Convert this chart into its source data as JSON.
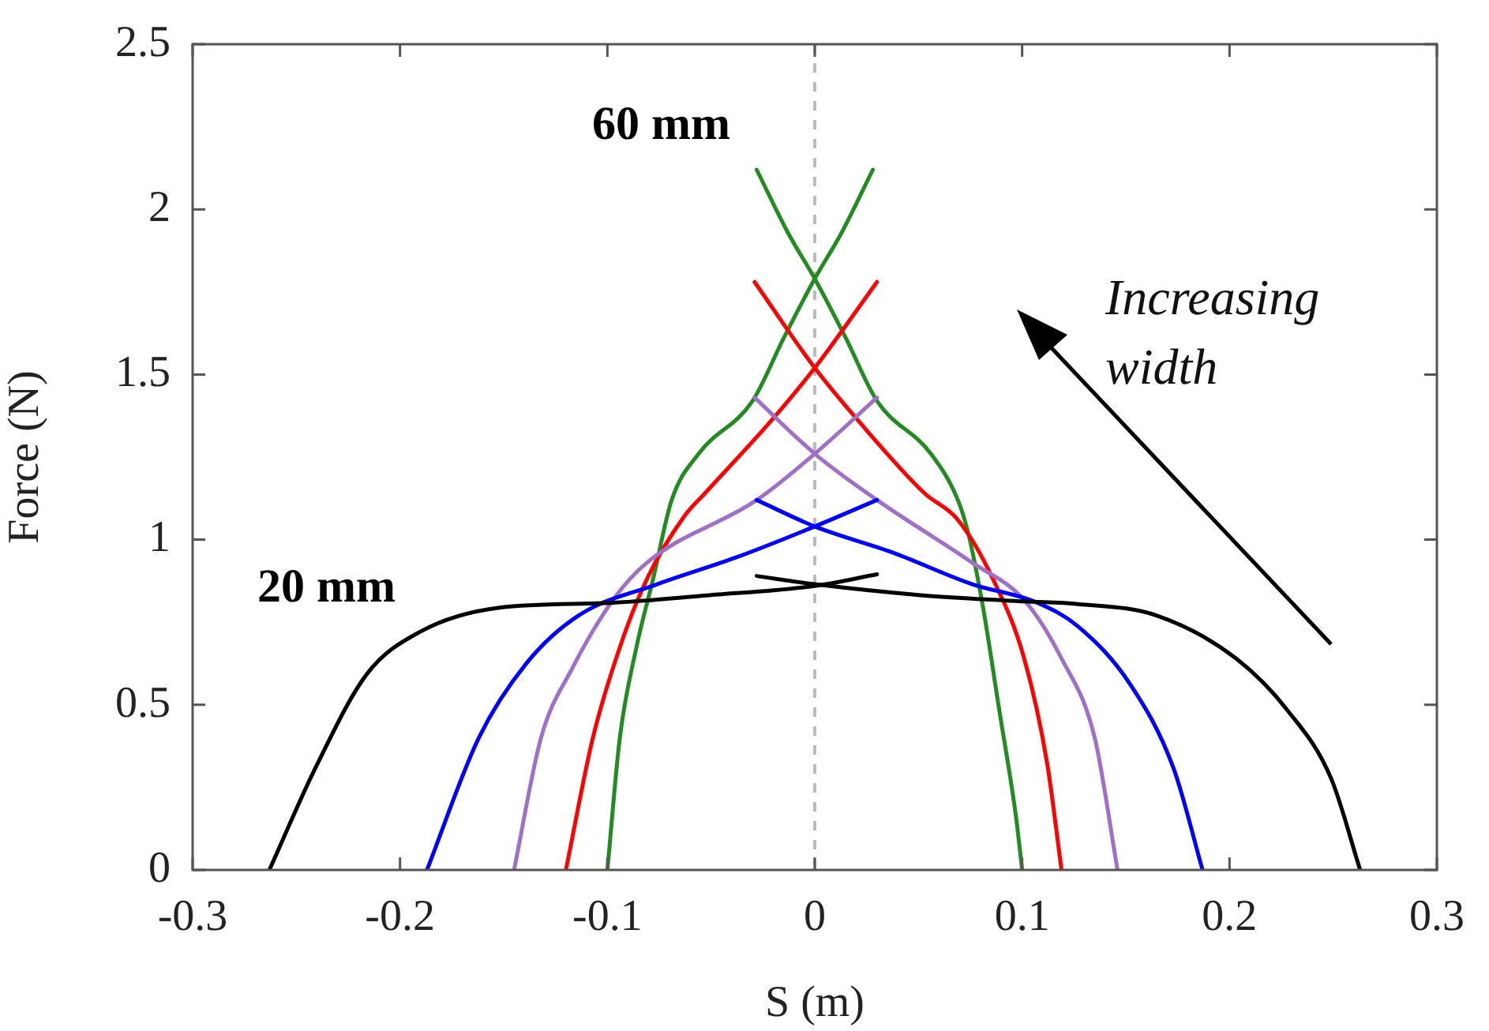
{
  "chart_data": {
    "type": "line",
    "xlabel": "S (m)",
    "ylabel": "Force (N)",
    "xlim": [
      -0.3,
      0.3
    ],
    "ylim": [
      0,
      2.5
    ],
    "xticks": [
      -0.3,
      -0.2,
      -0.1,
      0,
      0.1,
      0.2,
      0.3
    ],
    "yticks": [
      0,
      0.5,
      1,
      1.5,
      2,
      2.5
    ],
    "marker": "none",
    "line_style": "solid",
    "series": [
      {
        "color": "#000000",
        "x": [
          -0.263,
          -0.241,
          -0.216,
          -0.19,
          -0.152,
          -0.101,
          -0.051,
          0,
          0.03
        ],
        "values": [
          0,
          0.306,
          0.593,
          0.722,
          0.794,
          0.808,
          0.832,
          0.86,
          0.895
        ]
      },
      {
        "color": "#000000",
        "x": [
          -0.028,
          0,
          0.051,
          0.101,
          0.127,
          0.165,
          0.203,
          0.228,
          0.249,
          0.263
        ],
        "values": [
          0.89,
          0.865,
          0.832,
          0.813,
          0.805,
          0.77,
          0.641,
          0.483,
          0.277,
          0
        ]
      },
      {
        "color": "#0000ff",
        "x": [
          -0.187,
          -0.162,
          -0.139,
          -0.114,
          -0.076,
          -0.038,
          0,
          0.03
        ],
        "values": [
          0,
          0.4,
          0.626,
          0.77,
          0.865,
          0.946,
          1.04,
          1.12
        ]
      },
      {
        "color": "#0000ff",
        "x": [
          -0.028,
          0,
          0.038,
          0.076,
          0.107,
          0.127,
          0.152,
          0.173,
          0.187
        ],
        "values": [
          1.12,
          1.04,
          0.96,
          0.865,
          0.81,
          0.737,
          0.563,
          0.308,
          0
        ]
      },
      {
        "color": "#a070c8",
        "x": [
          -0.145,
          -0.132,
          -0.117,
          -0.097,
          -0.081,
          -0.028,
          0,
          0.03
        ],
        "values": [
          0,
          0.4,
          0.61,
          0.82,
          0.93,
          1.12,
          1.26,
          1.43
        ]
      },
      {
        "color": "#a070c8",
        "x": [
          -0.029,
          0,
          0.03,
          0.076,
          0.101,
          0.119,
          0.135,
          0.146
        ],
        "values": [
          1.43,
          1.26,
          1.12,
          0.93,
          0.817,
          0.64,
          0.4,
          0
        ]
      },
      {
        "color": "#ff0000",
        "x": [
          -0.12,
          -0.107,
          -0.094,
          -0.081,
          -0.063,
          -0.053,
          -0.021,
          0,
          0.03
        ],
        "values": [
          0,
          0.4,
          0.674,
          0.88,
          1.07,
          1.14,
          1.36,
          1.52,
          1.78
        ]
      },
      {
        "color": "#ff0000",
        "x": [
          -0.029,
          0,
          0.021,
          0.053,
          0.069,
          0.086,
          0.101,
          0.112,
          0.119
        ],
        "values": [
          1.78,
          1.52,
          1.36,
          1.14,
          1.06,
          0.88,
          0.64,
          0.325,
          0
        ]
      },
      {
        "color": "#228b22",
        "x": [
          -0.1,
          -0.094,
          -0.086,
          -0.078,
          -0.069,
          -0.056,
          -0.03,
          -0.015,
          0,
          0.013,
          0.028
        ],
        "values": [
          0,
          0.4,
          0.674,
          0.88,
          1.12,
          1.26,
          1.42,
          1.61,
          1.79,
          1.93,
          2.12
        ]
      },
      {
        "color": "#228b22",
        "x": [
          -0.028,
          -0.013,
          0,
          0.015,
          0.03,
          0.056,
          0.069,
          0.074,
          0.081,
          0.089,
          0.097,
          0.1
        ],
        "values": [
          2.12,
          1.93,
          1.79,
          1.61,
          1.42,
          1.26,
          1.12,
          1.02,
          0.8,
          0.483,
          0.163,
          0
        ]
      }
    ],
    "ref_lines": [
      {
        "axis": "x",
        "value": 0,
        "color": "#bbbbbb",
        "line_style": "dashed"
      }
    ],
    "annotations": [
      "60 mm",
      "20 mm",
      "Increasing width"
    ]
  }
}
